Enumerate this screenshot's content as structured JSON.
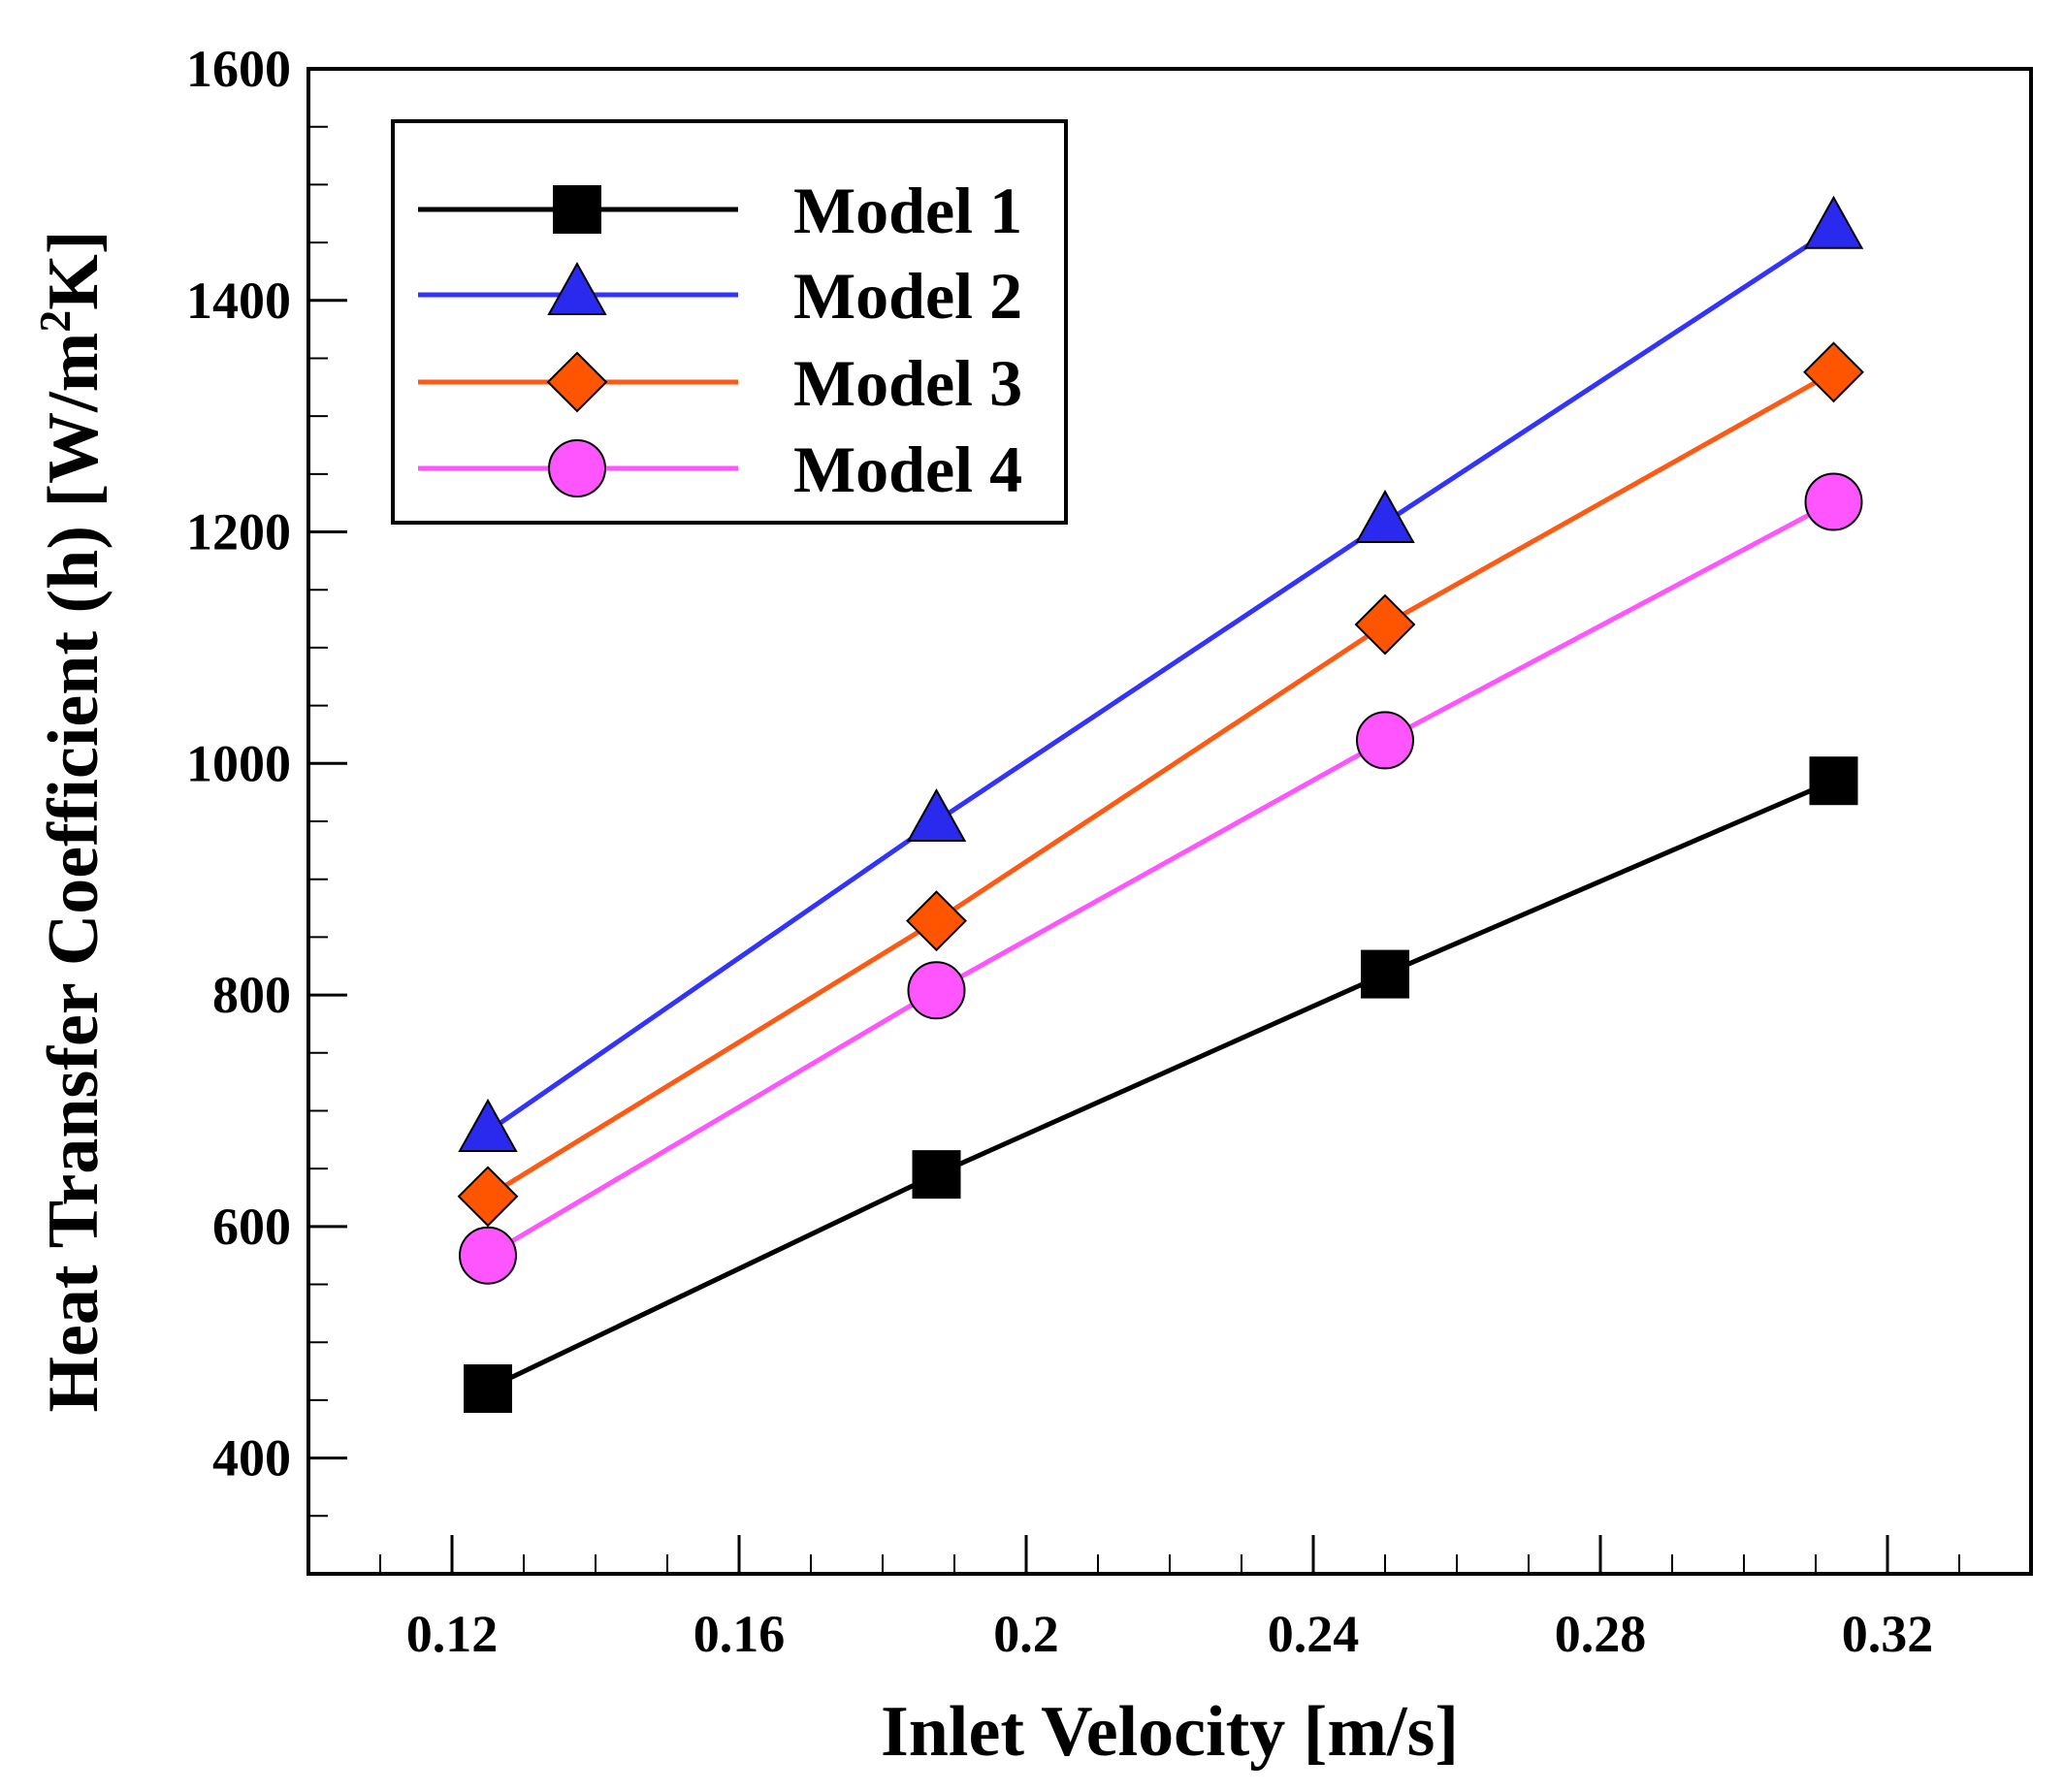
{
  "chart_data": {
    "type": "line",
    "title": "",
    "xlabel": "Inlet Velocity [m/s]",
    "ylabel_parts": {
      "main": "Heat Transfer Coefficient (h) [W/m",
      "sup": "2",
      "end": "K]"
    },
    "ylabel": "Heat Transfer Coefficient (h) [W/m2K]",
    "xlim": [
      0.1,
      0.34
    ],
    "ylim": [
      300,
      1600
    ],
    "xticks": [
      "0.12",
      "0.16",
      "0.2",
      "0.24",
      "0.28",
      "0.32"
    ],
    "xtick_values": [
      0.12,
      0.16,
      0.2,
      0.24,
      0.28,
      0.32
    ],
    "yticks": [
      "400",
      "600",
      "800",
      "1000",
      "1200",
      "1400",
      "1600"
    ],
    "ytick_values": [
      400,
      600,
      800,
      1000,
      1200,
      1400,
      1600
    ],
    "x_minor_step": 0.01,
    "y_minor_step": 50,
    "grid": false,
    "legend_position": "top-left",
    "x": [
      0.125,
      0.1875,
      0.25,
      0.3125
    ],
    "series": [
      {
        "name": "Model 1",
        "marker": "square",
        "color": "#000000",
        "fill": "#000000",
        "values": [
          460,
          645,
          818,
          985
        ]
      },
      {
        "name": "Model 2",
        "marker": "triangle",
        "color": "#3333ff",
        "fill": "#2a2aee",
        "values": [
          682,
          950,
          1208,
          1462
        ]
      },
      {
        "name": "Model 3",
        "marker": "diamond",
        "color": "#ff5a14",
        "fill": "#ff5500",
        "values": [
          626,
          864,
          1120,
          1338
        ]
      },
      {
        "name": "Model 4",
        "marker": "circle",
        "color": "#ff55ff",
        "fill": "#ff55ff",
        "values": [
          575,
          804,
          1020,
          1226
        ]
      }
    ]
  }
}
